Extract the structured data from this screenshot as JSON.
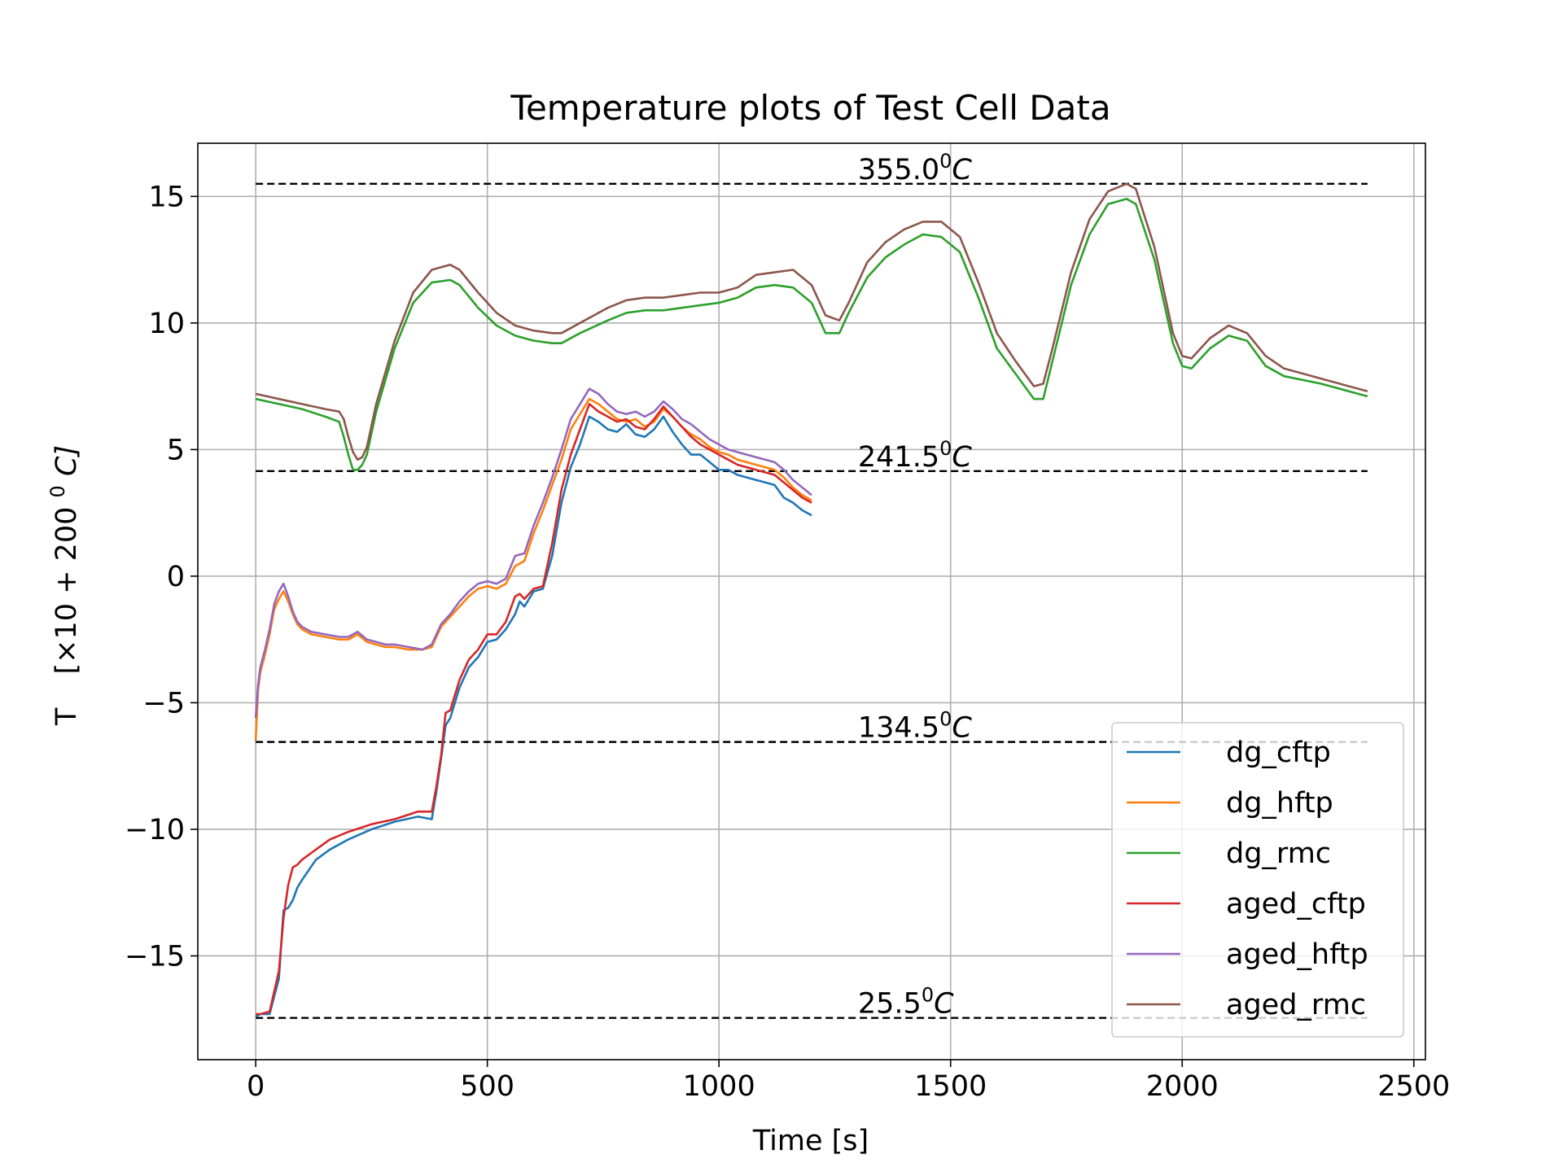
{
  "chart_data": {
    "type": "line",
    "title": "Temperature plots of Test Cell Data",
    "xlabel": "Time [s]",
    "ylabel_main": "T",
    "ylabel_unit": "[×10 + 200",
    "ylabel_sup": "0",
    "ylabel_c": "C]",
    "xlim": [
      -125,
      2525
    ],
    "ylim": [
      -19.1,
      17.1
    ],
    "xticks": [
      0,
      500,
      1000,
      1500,
      2000,
      2500
    ],
    "xtick_labels": [
      "0",
      "500",
      "1000",
      "1500",
      "2000",
      "2500"
    ],
    "yticks": [
      -15,
      -10,
      -5,
      0,
      5,
      10,
      15
    ],
    "ytick_labels": [
      "−15",
      "−10",
      "−5",
      "0",
      "5",
      "10",
      "15"
    ],
    "grid": true,
    "legend_position": "lower-right",
    "reference_lines": [
      {
        "y": 15.5,
        "label": "355.0",
        "x_from": 0,
        "x_to": 2400,
        "label_x": 1300
      },
      {
        "y": 4.15,
        "label": "241.5",
        "x_from": 0,
        "x_to": 2400,
        "label_x": 1300
      },
      {
        "y": -6.55,
        "label": "134.5",
        "x_from": 0,
        "x_to": 2400,
        "label_x": 1300
      },
      {
        "y": -17.45,
        "label": "25.5",
        "x_from": 0,
        "x_to": 2400,
        "label_x": 1300
      }
    ],
    "ref_sup": "0",
    "ref_unit": "C",
    "series": [
      {
        "name": "dg_cftp",
        "color": "#1f77b4",
        "x": [
          0,
          10,
          30,
          40,
          50,
          60,
          70,
          80,
          90,
          100,
          130,
          160,
          200,
          250,
          300,
          350,
          380,
          390,
          400,
          410,
          420,
          440,
          460,
          480,
          500,
          520,
          540,
          560,
          570,
          580,
          600,
          620,
          640,
          660,
          680,
          700,
          720,
          740,
          760,
          780,
          800,
          820,
          840,
          860,
          880,
          900,
          920,
          940,
          960,
          980,
          1000,
          1020,
          1040,
          1060,
          1080,
          1100,
          1120,
          1140,
          1160,
          1180,
          1200
        ],
        "y": [
          -17.4,
          -17.3,
          -17.3,
          -16.6,
          -15.9,
          -13.2,
          -13.1,
          -12.8,
          -12.3,
          -12.0,
          -11.2,
          -10.8,
          -10.4,
          -10.0,
          -9.7,
          -9.5,
          -9.6,
          -8.5,
          -7.2,
          -5.9,
          -5.6,
          -4.4,
          -3.6,
          -3.2,
          -2.6,
          -2.5,
          -2.1,
          -1.5,
          -1.0,
          -1.2,
          -0.6,
          -0.5,
          0.8,
          2.9,
          4.3,
          5.2,
          6.3,
          6.1,
          5.8,
          5.7,
          6.0,
          5.6,
          5.5,
          5.8,
          6.3,
          5.7,
          5.2,
          4.8,
          4.8,
          4.5,
          4.2,
          4.2,
          4.0,
          3.9,
          3.8,
          3.7,
          3.6,
          3.1,
          2.9,
          2.6,
          2.4
        ]
      },
      {
        "name": "dg_hftp",
        "color": "#ff7f0e",
        "x": [
          0,
          5,
          10,
          20,
          30,
          40,
          50,
          60,
          70,
          80,
          90,
          100,
          120,
          150,
          180,
          200,
          220,
          240,
          260,
          280,
          300,
          330,
          360,
          380,
          400,
          420,
          440,
          460,
          480,
          500,
          520,
          540,
          560,
          580,
          600,
          620,
          640,
          660,
          680,
          700,
          720,
          740,
          760,
          780,
          800,
          820,
          840,
          860,
          880,
          900,
          920,
          940,
          960,
          980,
          1000,
          1020,
          1040,
          1060,
          1080,
          1100,
          1120,
          1140,
          1160,
          1180,
          1200
        ],
        "y": [
          -6.5,
          -4.5,
          -3.8,
          -3.1,
          -2.3,
          -1.3,
          -0.9,
          -0.6,
          -1.0,
          -1.5,
          -1.9,
          -2.1,
          -2.3,
          -2.4,
          -2.5,
          -2.5,
          -2.3,
          -2.6,
          -2.7,
          -2.8,
          -2.8,
          -2.9,
          -2.9,
          -2.8,
          -2.0,
          -1.6,
          -1.2,
          -0.8,
          -0.5,
          -0.4,
          -0.5,
          -0.3,
          0.4,
          0.6,
          1.7,
          2.6,
          3.6,
          4.6,
          5.8,
          6.4,
          7.0,
          6.8,
          6.5,
          6.2,
          6.1,
          6.2,
          5.9,
          6.1,
          6.6,
          6.3,
          5.9,
          5.6,
          5.4,
          5.1,
          4.9,
          4.8,
          4.6,
          4.5,
          4.4,
          4.3,
          4.2,
          3.9,
          3.5,
          3.2,
          3.0
        ]
      },
      {
        "name": "dg_rmc",
        "color": "#2ca02c",
        "x": [
          0,
          50,
          100,
          150,
          180,
          190,
          200,
          210,
          220,
          230,
          240,
          260,
          300,
          340,
          380,
          420,
          440,
          480,
          520,
          560,
          600,
          640,
          660,
          700,
          760,
          800,
          840,
          880,
          920,
          960,
          1000,
          1040,
          1080,
          1120,
          1160,
          1200,
          1230,
          1260,
          1280,
          1320,
          1360,
          1400,
          1440,
          1480,
          1520,
          1560,
          1600,
          1640,
          1680,
          1700,
          1720,
          1760,
          1800,
          1840,
          1880,
          1900,
          1940,
          1980,
          2000,
          2020,
          2060,
          2100,
          2140,
          2180,
          2220,
          2300,
          2400
        ],
        "y": [
          7.0,
          6.8,
          6.6,
          6.3,
          6.1,
          5.5,
          4.8,
          4.2,
          4.2,
          4.4,
          4.8,
          6.5,
          9.0,
          10.8,
          11.6,
          11.7,
          11.5,
          10.6,
          9.9,
          9.5,
          9.3,
          9.2,
          9.2,
          9.6,
          10.1,
          10.4,
          10.5,
          10.5,
          10.6,
          10.7,
          10.8,
          11.0,
          11.4,
          11.5,
          11.4,
          10.8,
          9.6,
          9.6,
          10.4,
          11.8,
          12.6,
          13.1,
          13.5,
          13.4,
          12.8,
          11.0,
          9.0,
          8.0,
          7.0,
          7.0,
          8.5,
          11.5,
          13.5,
          14.7,
          14.9,
          14.7,
          12.5,
          9.2,
          8.3,
          8.2,
          9.0,
          9.5,
          9.3,
          8.3,
          7.9,
          7.6,
          7.1
        ]
      },
      {
        "name": "aged_cftp",
        "color": "#d62728",
        "x": [
          0,
          10,
          30,
          40,
          50,
          60,
          70,
          80,
          90,
          100,
          130,
          160,
          200,
          250,
          300,
          350,
          380,
          390,
          400,
          410,
          420,
          440,
          460,
          480,
          500,
          520,
          540,
          560,
          570,
          580,
          600,
          620,
          640,
          660,
          680,
          700,
          720,
          740,
          760,
          780,
          800,
          820,
          840,
          860,
          880,
          900,
          920,
          940,
          960,
          980,
          1000,
          1020,
          1040,
          1060,
          1080,
          1100,
          1120,
          1140,
          1160,
          1180,
          1200
        ],
        "y": [
          -17.3,
          -17.3,
          -17.2,
          -16.4,
          -15.6,
          -13.5,
          -12.2,
          -11.5,
          -11.4,
          -11.2,
          -10.8,
          -10.4,
          -10.1,
          -9.8,
          -9.6,
          -9.3,
          -9.3,
          -8.3,
          -7.1,
          -5.4,
          -5.3,
          -4.1,
          -3.3,
          -2.9,
          -2.3,
          -2.3,
          -1.8,
          -0.8,
          -0.7,
          -0.9,
          -0.5,
          -0.4,
          1.3,
          3.4,
          4.8,
          5.8,
          6.8,
          6.5,
          6.3,
          6.1,
          6.2,
          5.9,
          5.8,
          6.2,
          6.7,
          6.3,
          5.9,
          5.5,
          5.2,
          5.0,
          4.8,
          4.6,
          4.4,
          4.3,
          4.2,
          4.1,
          4.0,
          3.7,
          3.4,
          3.1,
          2.9
        ]
      },
      {
        "name": "aged_hftp",
        "color": "#9467bd",
        "x": [
          0,
          5,
          10,
          20,
          30,
          40,
          50,
          60,
          70,
          80,
          90,
          100,
          120,
          150,
          180,
          200,
          220,
          240,
          260,
          280,
          300,
          330,
          360,
          380,
          400,
          420,
          440,
          460,
          480,
          500,
          520,
          540,
          560,
          580,
          600,
          620,
          640,
          660,
          680,
          700,
          720,
          740,
          760,
          780,
          800,
          820,
          840,
          860,
          880,
          900,
          920,
          940,
          960,
          980,
          1000,
          1020,
          1040,
          1060,
          1080,
          1100,
          1120,
          1140,
          1160,
          1180,
          1200
        ],
        "y": [
          -5.6,
          -4.3,
          -3.6,
          -2.9,
          -2.1,
          -1.1,
          -0.6,
          -0.3,
          -0.8,
          -1.4,
          -1.8,
          -2.0,
          -2.2,
          -2.3,
          -2.4,
          -2.4,
          -2.2,
          -2.5,
          -2.6,
          -2.7,
          -2.7,
          -2.8,
          -2.9,
          -2.7,
          -1.9,
          -1.5,
          -1.0,
          -0.6,
          -0.3,
          -0.2,
          -0.3,
          -0.1,
          0.8,
          0.9,
          2.0,
          2.9,
          3.9,
          5.0,
          6.2,
          6.8,
          7.4,
          7.2,
          6.8,
          6.5,
          6.4,
          6.5,
          6.3,
          6.5,
          6.9,
          6.6,
          6.2,
          6.0,
          5.7,
          5.4,
          5.2,
          5.0,
          4.9,
          4.8,
          4.7,
          4.6,
          4.5,
          4.2,
          3.8,
          3.5,
          3.2
        ]
      },
      {
        "name": "aged_rmc",
        "color": "#8c564b",
        "x": [
          0,
          50,
          100,
          150,
          180,
          190,
          200,
          210,
          220,
          230,
          240,
          260,
          300,
          340,
          380,
          420,
          440,
          480,
          520,
          560,
          600,
          640,
          660,
          700,
          760,
          800,
          840,
          880,
          920,
          960,
          1000,
          1040,
          1080,
          1120,
          1160,
          1200,
          1230,
          1260,
          1280,
          1320,
          1360,
          1400,
          1440,
          1480,
          1520,
          1560,
          1600,
          1640,
          1680,
          1700,
          1720,
          1760,
          1800,
          1840,
          1880,
          1900,
          1940,
          1980,
          2000,
          2020,
          2060,
          2100,
          2140,
          2180,
          2220,
          2300,
          2400
        ],
        "y": [
          7.2,
          7.0,
          6.8,
          6.6,
          6.5,
          6.2,
          5.5,
          4.9,
          4.6,
          4.7,
          5.1,
          6.8,
          9.3,
          11.2,
          12.1,
          12.3,
          12.1,
          11.2,
          10.4,
          9.9,
          9.7,
          9.6,
          9.6,
          10.0,
          10.6,
          10.9,
          11.0,
          11.0,
          11.1,
          11.2,
          11.2,
          11.4,
          11.9,
          12.0,
          12.1,
          11.5,
          10.3,
          10.1,
          10.8,
          12.4,
          13.2,
          13.7,
          14.0,
          14.0,
          13.4,
          11.6,
          9.6,
          8.5,
          7.5,
          7.6,
          9.0,
          12.0,
          14.1,
          15.2,
          15.5,
          15.3,
          13.0,
          9.6,
          8.7,
          8.6,
          9.4,
          9.9,
          9.6,
          8.7,
          8.2,
          7.8,
          7.3
        ]
      }
    ]
  }
}
